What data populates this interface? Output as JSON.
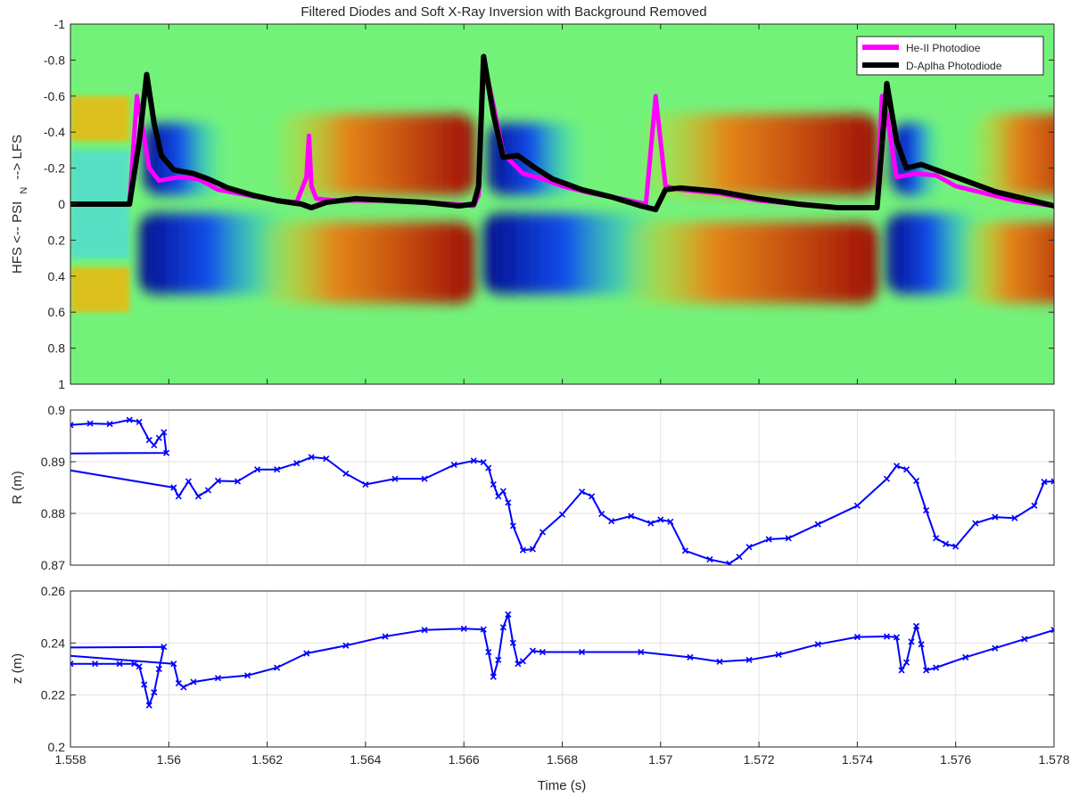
{
  "figure": {
    "title": "Filtered Diodes and Soft X-Ray Inversion with Background Removed",
    "xlabel": "Time (s)"
  },
  "chart_data": [
    {
      "type": "heatmap",
      "title": "Filtered Diodes and Soft X-Ray Inversion with Background Removed",
      "xlabel": "",
      "ylabel": "HFS <-- PSI",
      "ylabel_sub": "N",
      "ylabel_tail": "--> LFS",
      "xlim": [
        1.558,
        1.578
      ],
      "ylim": [
        -1,
        1
      ],
      "y_reversed": true,
      "x_ticks": [
        1.558,
        1.56,
        1.562,
        1.564,
        1.566,
        1.568,
        1.57,
        1.572,
        1.574,
        1.576,
        1.578
      ],
      "y_ticks": [
        -1,
        -0.8,
        -0.6,
        -0.4,
        -0.2,
        0,
        0.2,
        0.4,
        0.6,
        0.8,
        1
      ],
      "y_tick_labels": [
        "-1",
        "-0.8",
        "-0.6",
        "-0.4",
        "-0.2",
        "0",
        "0.2",
        "0.4",
        "0.6",
        "0.8",
        "1"
      ],
      "colormap": "jet",
      "background_color": "#73f27a",
      "legend_position": "top-right",
      "series": [
        {
          "name": "He-II Photodioe",
          "color": "#ff00ff",
          "x": [
            1.558,
            1.5592,
            1.55935,
            1.55945,
            1.5596,
            1.5598,
            1.5602,
            1.5606,
            1.561,
            1.5616,
            1.5622,
            1.5626,
            1.5628,
            1.56285,
            1.5629,
            1.563,
            1.5634,
            1.564,
            1.5646,
            1.5652,
            1.5658,
            1.5662,
            1.5663,
            1.5664,
            1.5666,
            1.5668,
            1.5672,
            1.5676,
            1.568,
            1.5686,
            1.5692,
            1.5697,
            1.56985,
            1.5699,
            1.5701,
            1.5704,
            1.5712,
            1.572,
            1.5728,
            1.5736,
            1.5744,
            1.5745,
            1.5746,
            1.5748,
            1.5752,
            1.5756,
            1.576,
            1.5766,
            1.5772,
            1.578
          ],
          "y": [
            0,
            0,
            -0.6,
            -0.45,
            -0.2,
            -0.13,
            -0.15,
            -0.14,
            -0.08,
            -0.05,
            -0.02,
            -0.01,
            -0.15,
            -0.38,
            -0.1,
            -0.03,
            -0.02,
            -0.02,
            -0.02,
            -0.01,
            0,
            0.01,
            -0.05,
            -0.8,
            -0.55,
            -0.28,
            -0.17,
            -0.14,
            -0.1,
            -0.06,
            -0.03,
            0,
            -0.45,
            -0.6,
            -0.1,
            -0.08,
            -0.06,
            -0.02,
            0,
            0.02,
            0.02,
            -0.6,
            -0.5,
            -0.15,
            -0.17,
            -0.16,
            -0.1,
            -0.06,
            -0.02,
            0.01
          ]
        },
        {
          "name": "D-Aplha Photodiode",
          "color": "#000000",
          "x": [
            1.558,
            1.5592,
            1.5594,
            1.55955,
            1.5597,
            1.55985,
            1.5601,
            1.5605,
            1.5608,
            1.5612,
            1.5617,
            1.5622,
            1.5627,
            1.5629,
            1.5632,
            1.5638,
            1.5645,
            1.5652,
            1.5659,
            1.5662,
            1.5663,
            1.5664,
            1.5666,
            1.5668,
            1.5671,
            1.5674,
            1.5678,
            1.5684,
            1.569,
            1.5696,
            1.5699,
            1.5701,
            1.5704,
            1.5712,
            1.572,
            1.5728,
            1.5736,
            1.5744,
            1.5746,
            1.5748,
            1.575,
            1.5753,
            1.5757,
            1.5762,
            1.5768,
            1.5774,
            1.578
          ],
          "y": [
            0,
            0,
            -0.35,
            -0.72,
            -0.45,
            -0.27,
            -0.19,
            -0.17,
            -0.14,
            -0.09,
            -0.05,
            -0.02,
            0,
            0.02,
            -0.01,
            -0.03,
            -0.02,
            -0.01,
            0.01,
            0,
            -0.1,
            -0.82,
            -0.5,
            -0.26,
            -0.27,
            -0.21,
            -0.14,
            -0.08,
            -0.04,
            0.01,
            0.03,
            -0.08,
            -0.09,
            -0.07,
            -0.03,
            0,
            0.02,
            0.02,
            -0.67,
            -0.35,
            -0.2,
            -0.22,
            -0.18,
            -0.13,
            -0.07,
            -0.03,
            0.01
          ]
        }
      ]
    },
    {
      "type": "line",
      "ylabel": "R (m)",
      "xlabel": "",
      "xlim": [
        1.558,
        1.578
      ],
      "ylim": [
        0.87,
        0.9
      ],
      "x_ticks": [
        1.558,
        1.56,
        1.562,
        1.564,
        1.566,
        1.568,
        1.57,
        1.572,
        1.574,
        1.576,
        1.578
      ],
      "y_ticks": [
        0.87,
        0.88,
        0.89,
        0.9
      ],
      "y_tick_labels": [
        "0.87",
        "0.88",
        "0.89",
        "0.9"
      ],
      "grid": true,
      "marker": "x",
      "color": "#0000ff",
      "x": [
        1.558,
        1.5584,
        1.5588,
        1.5592,
        1.5594,
        1.5596,
        1.5597,
        1.5598,
        1.5599,
        1.55995,
        1.556,
        1.5601,
        1.5602,
        1.5604,
        1.5606,
        1.5608,
        1.561,
        1.5614,
        1.5618,
        1.5622,
        1.5626,
        1.5629,
        1.5632,
        1.5636,
        1.564,
        1.5646,
        1.5652,
        1.5658,
        1.5662,
        1.5664,
        1.5665,
        1.5666,
        1.5667,
        1.5668,
        1.5669,
        1.567,
        1.5672,
        1.5674,
        1.5676,
        1.568,
        1.5684,
        1.5686,
        1.5688,
        1.569,
        1.5694,
        1.5698,
        1.57,
        1.5702,
        1.5705,
        1.571,
        1.5714,
        1.5716,
        1.5718,
        1.5722,
        1.5726,
        1.5732,
        1.574,
        1.5746,
        1.5748,
        1.575,
        1.5752,
        1.5754,
        1.5756,
        1.5758,
        1.576,
        1.5764,
        1.5768,
        1.5772,
        1.5776,
        1.5778,
        1.578
      ],
      "y": [
        0.8971,
        0.8974,
        0.8973,
        0.8981,
        0.8977,
        0.8942,
        0.8932,
        0.8946,
        0.8957,
        0.8917,
        0.8915,
        0.885,
        0.8833,
        0.8862,
        0.8833,
        0.8845,
        0.8863,
        0.8862,
        0.8885,
        0.8885,
        0.8897,
        0.8909,
        0.8906,
        0.8877,
        0.8856,
        0.8867,
        0.8867,
        0.8894,
        0.8902,
        0.8899,
        0.8888,
        0.8856,
        0.8833,
        0.8843,
        0.8821,
        0.8776,
        0.8729,
        0.8731,
        0.8764,
        0.8798,
        0.8842,
        0.8833,
        0.8799,
        0.8785,
        0.8795,
        0.8781,
        0.8788,
        0.8784,
        0.8728,
        0.8711,
        0.8703,
        0.8716,
        0.8735,
        0.875,
        0.8752,
        0.8779,
        0.8815,
        0.8867,
        0.8892,
        0.8885,
        0.8863,
        0.8806,
        0.8752,
        0.8741,
        0.8736,
        0.8781,
        0.8793,
        0.8791,
        0.8815,
        0.8861,
        0.8862
      ]
    },
    {
      "type": "line",
      "ylabel": "z (m)",
      "xlabel": "Time (s)",
      "xlim": [
        1.558,
        1.578
      ],
      "ylim": [
        0.2,
        0.26
      ],
      "x_ticks": [
        1.558,
        1.56,
        1.562,
        1.564,
        1.566,
        1.568,
        1.57,
        1.572,
        1.574,
        1.576,
        1.578
      ],
      "x_tick_labels": [
        "1.558",
        "1.56",
        "1.562",
        "1.564",
        "1.566",
        "1.568",
        "1.57",
        "1.572",
        "1.574",
        "1.576",
        "1.578"
      ],
      "y_ticks": [
        0.2,
        0.22,
        0.24,
        0.26
      ],
      "y_tick_labels": [
        "0.2",
        "0.22",
        "0.24",
        "0.26"
      ],
      "grid": true,
      "marker": "x",
      "color": "#0000ff",
      "x": [
        1.558,
        1.5585,
        1.559,
        1.5593,
        1.5594,
        1.5595,
        1.5596,
        1.5597,
        1.5598,
        1.5599,
        1.556,
        1.5601,
        1.5602,
        1.5603,
        1.5605,
        1.561,
        1.5616,
        1.5622,
        1.5628,
        1.5636,
        1.5644,
        1.5652,
        1.566,
        1.5664,
        1.5665,
        1.5666,
        1.5667,
        1.5668,
        1.5669,
        1.567,
        1.5671,
        1.5672,
        1.5674,
        1.5676,
        1.5684,
        1.5696,
        1.5706,
        1.5712,
        1.5718,
        1.5724,
        1.5732,
        1.574,
        1.5746,
        1.5748,
        1.5749,
        1.575,
        1.5751,
        1.5752,
        1.5753,
        1.5754,
        1.5756,
        1.5762,
        1.5768,
        1.5774,
        1.578
      ],
      "y": [
        0.232,
        0.232,
        0.232,
        0.232,
        0.231,
        0.224,
        0.216,
        0.221,
        0.23,
        0.2385,
        0.238,
        0.232,
        0.2245,
        0.223,
        0.225,
        0.2265,
        0.2275,
        0.2305,
        0.236,
        0.239,
        0.2425,
        0.245,
        0.2455,
        0.2452,
        0.2365,
        0.227,
        0.2335,
        0.246,
        0.251,
        0.24,
        0.232,
        0.233,
        0.237,
        0.2365,
        0.2365,
        0.2365,
        0.2345,
        0.2328,
        0.2335,
        0.2355,
        0.2395,
        0.2423,
        0.2425,
        0.2422,
        0.2295,
        0.2325,
        0.2405,
        0.2465,
        0.2395,
        0.2295,
        0.2305,
        0.2345,
        0.238,
        0.2415,
        0.245
      ]
    }
  ]
}
